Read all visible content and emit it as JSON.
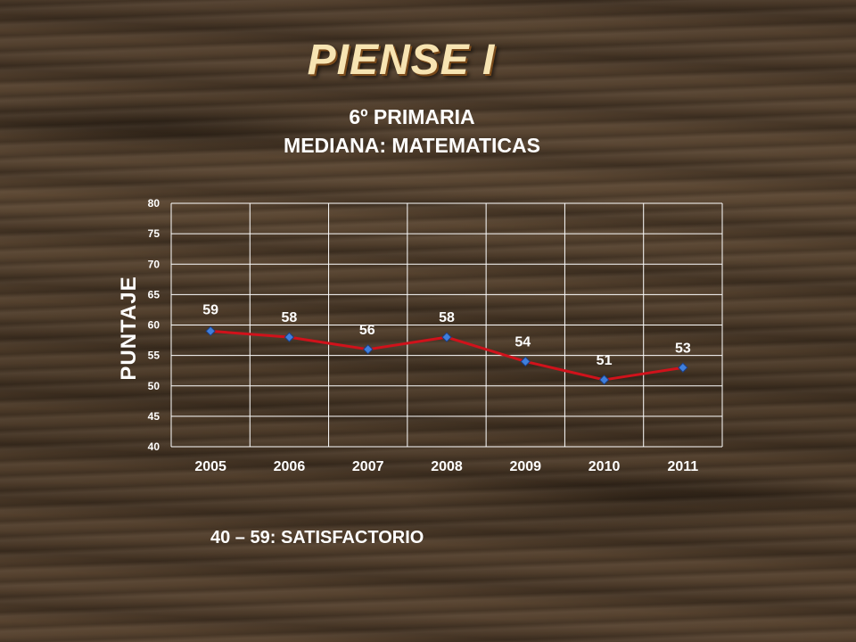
{
  "slide": {
    "title": "PIENSE I",
    "footer_note": "40 – 59: SATISFACTORIO"
  },
  "colors": {
    "line": "#d0121b",
    "marker": "#3f7fdc",
    "grid": "#ffffff",
    "text": "#ffffff"
  },
  "chart_data": {
    "type": "line",
    "title": "6º PRIMARIA",
    "subtitle": "MEDIANA: MATEMATICAS",
    "ylabel": "PUNTAJE",
    "xlabel": "",
    "categories": [
      "2005",
      "2006",
      "2007",
      "2008",
      "2009",
      "2010",
      "2011"
    ],
    "series": [
      {
        "values": [
          59,
          58,
          56,
          58,
          54,
          51,
          53
        ]
      }
    ],
    "ylim": [
      40,
      80
    ],
    "yticks": [
      40,
      45,
      50,
      55,
      60,
      65,
      70,
      75,
      80
    ],
    "data_labels": [
      "59",
      "58",
      "56",
      "58",
      "54",
      "51",
      "53"
    ],
    "grid": true,
    "legend": "none"
  }
}
